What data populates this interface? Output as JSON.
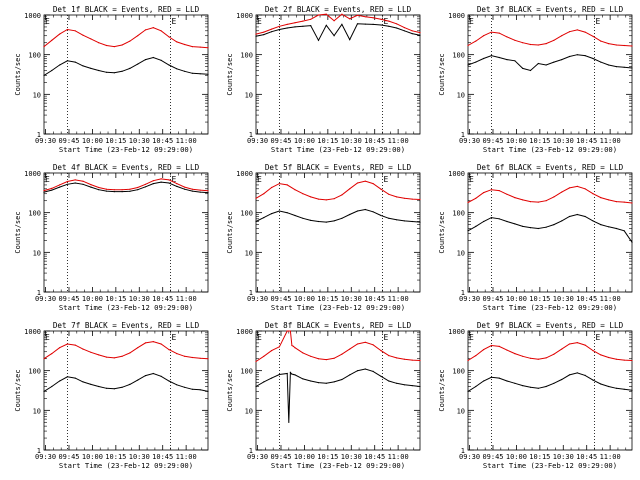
{
  "figure": {
    "colors": {
      "events": "#000000",
      "lld": "#e00000",
      "axes": "#000000",
      "background": "#ffffff"
    },
    "common": {
      "xlabel": "Start Time (23-Feb-12 09:29:00)",
      "ylabel": "Counts/sec",
      "y_ticks": [
        "1",
        "10",
        "100",
        "1000"
      ],
      "x_ticks": [
        "09:30",
        "09:45",
        "10:00",
        "10:15",
        "10:30",
        "10:45",
        "11:00"
      ],
      "edge_marker": "E"
    }
  },
  "chart_data": [
    {
      "type": "line",
      "title": "Det 1f BLACK = Events, RED = LLD",
      "yscale": "log",
      "ylim": [
        1,
        1000
      ],
      "xlim_minutes": [
        0,
        105
      ],
      "marker_lines_minutes": [
        15,
        81
      ],
      "x": [
        0,
        5,
        10,
        15,
        20,
        25,
        30,
        35,
        40,
        45,
        50,
        55,
        60,
        65,
        70,
        75,
        80,
        85,
        90,
        95,
        100,
        105
      ],
      "series": [
        {
          "name": "Events",
          "color": "#000000",
          "values": [
            30,
            40,
            55,
            70,
            65,
            52,
            45,
            40,
            36,
            35,
            38,
            45,
            58,
            75,
            85,
            72,
            55,
            44,
            38,
            34,
            33,
            32
          ]
        },
        {
          "name": "LLD",
          "color": "#e00000",
          "values": [
            160,
            230,
            330,
            430,
            400,
            310,
            250,
            200,
            170,
            160,
            175,
            220,
            300,
            420,
            480,
            400,
            280,
            210,
            180,
            160,
            155,
            150
          ]
        }
      ]
    },
    {
      "type": "line",
      "title": "Det 2f BLACK = Events, RED = LLD",
      "yscale": "log",
      "ylim": [
        1,
        1000
      ],
      "xlim_minutes": [
        0,
        105
      ],
      "marker_lines_minutes": [
        15,
        81
      ],
      "x": [
        0,
        5,
        10,
        15,
        20,
        25,
        30,
        35,
        40,
        45,
        50,
        55,
        60,
        65,
        70,
        75,
        80,
        85,
        90,
        95,
        100,
        105
      ],
      "series": [
        {
          "name": "Events",
          "color": "#000000",
          "values": [
            290,
            320,
            380,
            430,
            470,
            500,
            520,
            540,
            230,
            550,
            300,
            580,
            240,
            600,
            590,
            580,
            560,
            520,
            470,
            400,
            340,
            310
          ]
        },
        {
          "name": "LLD",
          "color": "#e00000",
          "values": [
            330,
            370,
            440,
            520,
            580,
            640,
            700,
            780,
            1000,
            1050,
            720,
            1050,
            800,
            980,
            900,
            850,
            780,
            700,
            600,
            480,
            400,
            360
          ]
        }
      ]
    },
    {
      "type": "line",
      "title": "Det 3f BLACK = Events, RED = LLD",
      "yscale": "log",
      "ylim": [
        1,
        1000
      ],
      "xlim_minutes": [
        0,
        105
      ],
      "marker_lines_minutes": [
        15,
        81
      ],
      "x": [
        0,
        5,
        10,
        15,
        20,
        25,
        30,
        35,
        40,
        45,
        50,
        55,
        60,
        65,
        70,
        75,
        80,
        85,
        90,
        95,
        100,
        105
      ],
      "series": [
        {
          "name": "Events",
          "color": "#000000",
          "values": [
            55,
            65,
            80,
            95,
            85,
            75,
            70,
            45,
            40,
            60,
            55,
            65,
            75,
            90,
            100,
            95,
            80,
            65,
            55,
            50,
            48,
            46
          ]
        },
        {
          "name": "LLD",
          "color": "#e00000",
          "values": [
            170,
            220,
            300,
            370,
            350,
            280,
            230,
            200,
            180,
            175,
            190,
            230,
            300,
            380,
            420,
            370,
            290,
            220,
            190,
            175,
            170,
            165
          ]
        }
      ]
    },
    {
      "type": "line",
      "title": "Det 4f BLACK = Events, RED = LLD",
      "yscale": "log",
      "ylim": [
        1,
        1000
      ],
      "xlim_minutes": [
        0,
        105
      ],
      "marker_lines_minutes": [
        15,
        81
      ],
      "x": [
        0,
        5,
        10,
        15,
        20,
        25,
        30,
        35,
        40,
        45,
        50,
        55,
        60,
        65,
        70,
        75,
        80,
        85,
        90,
        95,
        100,
        105
      ],
      "series": [
        {
          "name": "Events",
          "color": "#000000",
          "values": [
            330,
            370,
            440,
            520,
            560,
            520,
            440,
            380,
            350,
            340,
            340,
            345,
            380,
            450,
            540,
            590,
            560,
            460,
            390,
            350,
            330,
            320
          ]
        },
        {
          "name": "LLD",
          "color": "#e00000",
          "values": [
            360,
            410,
            500,
            610,
            670,
            620,
            510,
            430,
            390,
            380,
            380,
            390,
            430,
            520,
            640,
            710,
            670,
            540,
            440,
            390,
            370,
            355
          ]
        }
      ]
    },
    {
      "type": "line",
      "title": "Det 5f BLACK = Events, RED = LLD",
      "yscale": "log",
      "ylim": [
        1,
        1000
      ],
      "xlim_minutes": [
        0,
        105
      ],
      "marker_lines_minutes": [
        15,
        81
      ],
      "x": [
        0,
        5,
        10,
        15,
        20,
        25,
        30,
        35,
        40,
        45,
        50,
        55,
        60,
        65,
        70,
        75,
        80,
        85,
        90,
        95,
        100,
        105
      ],
      "series": [
        {
          "name": "Events",
          "color": "#000000",
          "values": [
            60,
            75,
            95,
            110,
            100,
            85,
            72,
            64,
            60,
            58,
            62,
            72,
            90,
            110,
            120,
            105,
            85,
            72,
            66,
            62,
            60,
            58
          ]
        },
        {
          "name": "LLD",
          "color": "#e00000",
          "values": [
            230,
            300,
            430,
            540,
            500,
            380,
            300,
            250,
            220,
            210,
            225,
            280,
            400,
            560,
            620,
            540,
            390,
            290,
            250,
            230,
            220,
            215
          ]
        }
      ]
    },
    {
      "type": "line",
      "title": "Det 6f BLACK = Events, RED = LLD",
      "yscale": "log",
      "ylim": [
        1,
        1000
      ],
      "xlim_minutes": [
        0,
        105
      ],
      "marker_lines_minutes": [
        15,
        81
      ],
      "x": [
        0,
        5,
        10,
        15,
        20,
        25,
        30,
        35,
        40,
        45,
        50,
        55,
        60,
        65,
        70,
        75,
        80,
        85,
        90,
        95,
        100,
        105
      ],
      "series": [
        {
          "name": "Events",
          "color": "#000000",
          "values": [
            35,
            45,
            60,
            75,
            70,
            60,
            52,
            45,
            42,
            40,
            43,
            50,
            62,
            80,
            90,
            80,
            62,
            50,
            44,
            40,
            35,
            18
          ]
        },
        {
          "name": "LLD",
          "color": "#e00000",
          "values": [
            180,
            230,
            320,
            380,
            360,
            290,
            240,
            210,
            190,
            185,
            200,
            250,
            330,
            420,
            460,
            400,
            300,
            240,
            210,
            190,
            185,
            175
          ]
        }
      ]
    },
    {
      "type": "line",
      "title": "Det 7f BLACK = Events, RED = LLD",
      "yscale": "log",
      "ylim": [
        1,
        1000
      ],
      "xlim_minutes": [
        0,
        105
      ],
      "marker_lines_minutes": [
        15,
        81
      ],
      "x": [
        0,
        5,
        10,
        15,
        20,
        25,
        30,
        35,
        40,
        45,
        50,
        55,
        60,
        65,
        70,
        75,
        80,
        85,
        90,
        95,
        100,
        105
      ],
      "series": [
        {
          "name": "Events",
          "color": "#000000",
          "values": [
            30,
            40,
            55,
            70,
            65,
            52,
            45,
            40,
            36,
            35,
            38,
            45,
            58,
            75,
            85,
            72,
            55,
            44,
            38,
            34,
            33,
            30
          ]
        },
        {
          "name": "LLD",
          "color": "#e00000",
          "values": [
            200,
            270,
            380,
            470,
            440,
            350,
            290,
            250,
            220,
            210,
            230,
            280,
            380,
            500,
            540,
            470,
            340,
            270,
            230,
            215,
            205,
            200
          ]
        }
      ]
    },
    {
      "type": "line",
      "title": "Det 8f BLACK = Events, RED = LLD",
      "yscale": "log",
      "ylim": [
        1,
        1000
      ],
      "xlim_minutes": [
        0,
        105
      ],
      "marker_lines_minutes": [
        15,
        81
      ],
      "x": [
        0,
        5,
        10,
        15,
        20,
        21,
        22,
        23,
        24,
        25,
        30,
        35,
        40,
        45,
        50,
        55,
        60,
        65,
        70,
        75,
        80,
        85,
        90,
        95,
        100,
        105
      ],
      "series": [
        {
          "name": "Events",
          "color": "#000000",
          "values": [
            40,
            52,
            65,
            80,
            85,
            5,
            90,
            82,
            80,
            78,
            62,
            55,
            50,
            48,
            52,
            60,
            78,
            100,
            110,
            96,
            72,
            55,
            48,
            44,
            42,
            40
          ]
        },
        {
          "name": "LLD",
          "color": "#e00000",
          "values": [
            170,
            230,
            320,
            400,
            1000,
            1000,
            1000,
            430,
            410,
            380,
            280,
            230,
            200,
            190,
            205,
            260,
            350,
            470,
            520,
            450,
            320,
            240,
            210,
            195,
            185,
            180
          ]
        }
      ]
    },
    {
      "type": "line",
      "title": "Det 9f BLACK = Events, RED = LLD",
      "yscale": "log",
      "ylim": [
        1,
        1000
      ],
      "xlim_minutes": [
        0,
        105
      ],
      "marker_lines_minutes": [
        15,
        81
      ],
      "x": [
        0,
        5,
        10,
        15,
        20,
        25,
        30,
        35,
        40,
        45,
        50,
        55,
        60,
        65,
        70,
        75,
        80,
        85,
        90,
        95,
        100,
        105
      ],
      "series": [
        {
          "name": "Events",
          "color": "#000000",
          "values": [
            30,
            40,
            55,
            68,
            65,
            55,
            48,
            42,
            38,
            36,
            40,
            48,
            60,
            78,
            88,
            76,
            58,
            46,
            40,
            36,
            34,
            32
          ]
        },
        {
          "name": "LLD",
          "color": "#e00000",
          "values": [
            180,
            240,
            340,
            430,
            410,
            330,
            270,
            230,
            205,
            195,
            210,
            260,
            350,
            470,
            510,
            440,
            320,
            250,
            215,
            195,
            185,
            180
          ]
        }
      ]
    }
  ]
}
